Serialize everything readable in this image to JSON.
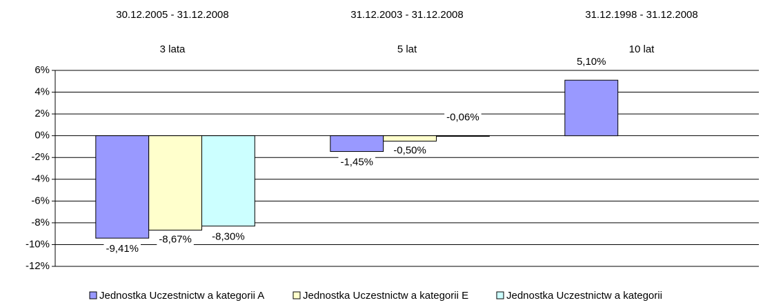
{
  "chart_data": {
    "type": "bar",
    "periods": [
      "30.12.2005 - 31.12.2008",
      "31.12.2003 - 31.12.2008",
      "31.12.1998 - 31.12.2008"
    ],
    "categories": [
      "3 lata",
      "5 lat",
      "10 lat"
    ],
    "series": [
      {
        "name": "Jednostka Uczestnictw a kategorii A",
        "color": "#9999ff",
        "values": [
          -9.41,
          -1.45,
          5.1
        ],
        "value_labels": [
          "-9,41%",
          "-1,45%",
          "5,10%"
        ]
      },
      {
        "name": "Jednostka Uczestnictw a kategorii E",
        "color": "#ffffcc",
        "values": [
          -8.67,
          -0.5,
          null
        ],
        "value_labels": [
          "-8,67%",
          "-0,50%",
          null
        ]
      },
      {
        "name": "Jednostka Uczestnictw a kategorii",
        "color": "#ccffff",
        "values": [
          -8.3,
          -0.06,
          null
        ],
        "value_labels": [
          "-8,30%",
          "-0,06%",
          null
        ]
      }
    ],
    "ylim": [
      -12,
      6
    ],
    "yticks": [
      {
        "value": -12,
        "label": "-12%"
      },
      {
        "value": -10,
        "label": "-10%"
      },
      {
        "value": -8,
        "label": "-8%"
      },
      {
        "value": -6,
        "label": "-6%"
      },
      {
        "value": -4,
        "label": "-4%"
      },
      {
        "value": -2,
        "label": "-2%"
      },
      {
        "value": 0,
        "label": "0%"
      },
      {
        "value": 2,
        "label": "2%"
      },
      {
        "value": 4,
        "label": "4%"
      },
      {
        "value": 6,
        "label": "6%"
      }
    ],
    "grid": true
  }
}
